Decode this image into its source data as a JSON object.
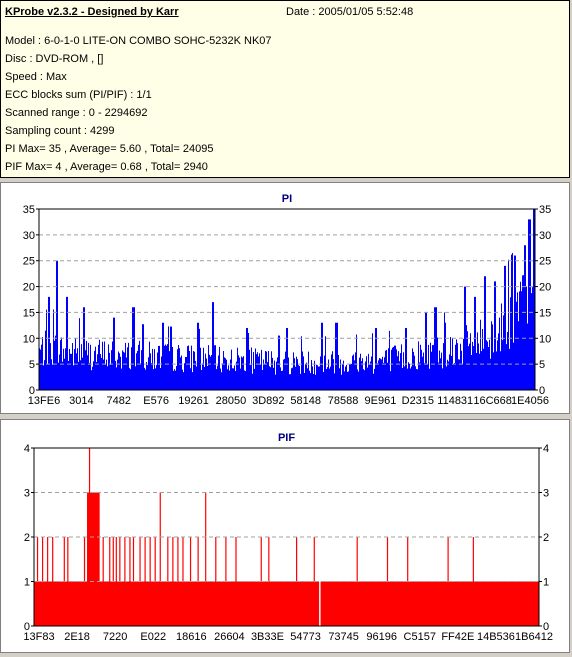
{
  "header": {
    "title": "KProbe v2.3.2 - Designed by Karr",
    "date": "Date : 2005/01/05 5:52:48",
    "lines": [
      "Model : 6-0-1-0 LITE-ON COMBO SOHC-5232K NK07",
      "Disc : DVD-ROM ,  []",
      "Speed : Max",
      "ECC blocks sum (PI/PIF) : 1/1",
      "Scanned range : 0 - 2294692",
      "Sampling count : 4299",
      "PI Max= 35 , Average= 5.60 , Total= 24095",
      "PIF Max= 4 , Average= 0.68 , Total= 2940"
    ]
  },
  "colors": {
    "pi": "#0000ff",
    "pif": "#ff0000",
    "title": "#000080",
    "grid": "#a0a0a0"
  },
  "chart_data": [
    {
      "type": "bar",
      "title": "PI",
      "ylim": [
        0,
        35
      ],
      "yticks": [
        0,
        5,
        10,
        15,
        20,
        25,
        30,
        35
      ],
      "xticklabels": [
        "13FE6",
        "3014",
        "7482",
        "E576",
        "19261",
        "28050",
        "3D892",
        "58148",
        "78588",
        "9E961",
        "D2315",
        "114831",
        "16C668",
        "1E4056"
      ],
      "grid": true,
      "baseline_avg": 5.6,
      "max": 35,
      "samples": 4299,
      "profile_note_values": [
        [
          0,
          9
        ],
        [
          0.02,
          10
        ],
        [
          0.05,
          9
        ],
        [
          0.1,
          8.5
        ],
        [
          0.2,
          8
        ],
        [
          0.3,
          7.5
        ],
        [
          0.4,
          7
        ],
        [
          0.5,
          6.5
        ],
        [
          0.6,
          6.5
        ],
        [
          0.7,
          7
        ],
        [
          0.75,
          8
        ],
        [
          0.8,
          9
        ],
        [
          0.85,
          10
        ],
        [
          0.9,
          12
        ],
        [
          0.93,
          14
        ],
        [
          0.96,
          17
        ],
        [
          0.98,
          22
        ],
        [
          1.0,
          30
        ]
      ],
      "peaks": [
        [
          0.02,
          18
        ],
        [
          0.035,
          25
        ],
        [
          0.055,
          18
        ],
        [
          0.09,
          16
        ],
        [
          0.15,
          14
        ],
        [
          0.19,
          16
        ],
        [
          0.25,
          13
        ],
        [
          0.32,
          13
        ],
        [
          0.35,
          17
        ],
        [
          0.42,
          12
        ],
        [
          0.5,
          12
        ],
        [
          0.57,
          13
        ],
        [
          0.6,
          13
        ],
        [
          0.68,
          12
        ],
        [
          0.74,
          12
        ],
        [
          0.78,
          15
        ],
        [
          0.8,
          16
        ],
        [
          0.82,
          13
        ],
        [
          0.86,
          20
        ],
        [
          0.88,
          18
        ],
        [
          0.9,
          22
        ],
        [
          0.92,
          21
        ],
        [
          0.94,
          24
        ],
        [
          0.96,
          26
        ],
        [
          0.98,
          28
        ],
        [
          0.99,
          33
        ],
        [
          1.0,
          35
        ]
      ]
    },
    {
      "type": "bar",
      "title": "PIF",
      "ylim": [
        0,
        4
      ],
      "yticks": [
        0,
        1,
        2,
        3,
        4
      ],
      "xticklabels": [
        "13F83",
        "2E18",
        "7220",
        "E022",
        "18616",
        "26604",
        "3B33E",
        "54773",
        "73745",
        "96196",
        "C5157",
        "FF42E",
        "14B536",
        "1B6412"
      ],
      "grid": true,
      "baseline_value": 1,
      "average": 0.68,
      "max": 4,
      "gap_positions": [
        0.566
      ],
      "dense_region": [
        0.105,
        0.13,
        3
      ],
      "spikes": [
        [
          0.007,
          2
        ],
        [
          0.017,
          2
        ],
        [
          0.027,
          2
        ],
        [
          0.037,
          2
        ],
        [
          0.06,
          2
        ],
        [
          0.067,
          2
        ],
        [
          0.1,
          2
        ],
        [
          0.11,
          4
        ],
        [
          0.137,
          2
        ],
        [
          0.15,
          2
        ],
        [
          0.157,
          2
        ],
        [
          0.163,
          2
        ],
        [
          0.17,
          2
        ],
        [
          0.18,
          2
        ],
        [
          0.19,
          2
        ],
        [
          0.197,
          2
        ],
        [
          0.21,
          2
        ],
        [
          0.22,
          2
        ],
        [
          0.23,
          2
        ],
        [
          0.24,
          2
        ],
        [
          0.25,
          3
        ],
        [
          0.265,
          2
        ],
        [
          0.275,
          2
        ],
        [
          0.285,
          2
        ],
        [
          0.295,
          2
        ],
        [
          0.31,
          2
        ],
        [
          0.325,
          2
        ],
        [
          0.34,
          3
        ],
        [
          0.36,
          2
        ],
        [
          0.38,
          2
        ],
        [
          0.4,
          2
        ],
        [
          0.45,
          2
        ],
        [
          0.465,
          2
        ],
        [
          0.52,
          2
        ],
        [
          0.555,
          2
        ],
        [
          0.64,
          2
        ],
        [
          0.7,
          2
        ],
        [
          0.74,
          2
        ],
        [
          0.82,
          2
        ],
        [
          0.87,
          2
        ]
      ]
    }
  ]
}
